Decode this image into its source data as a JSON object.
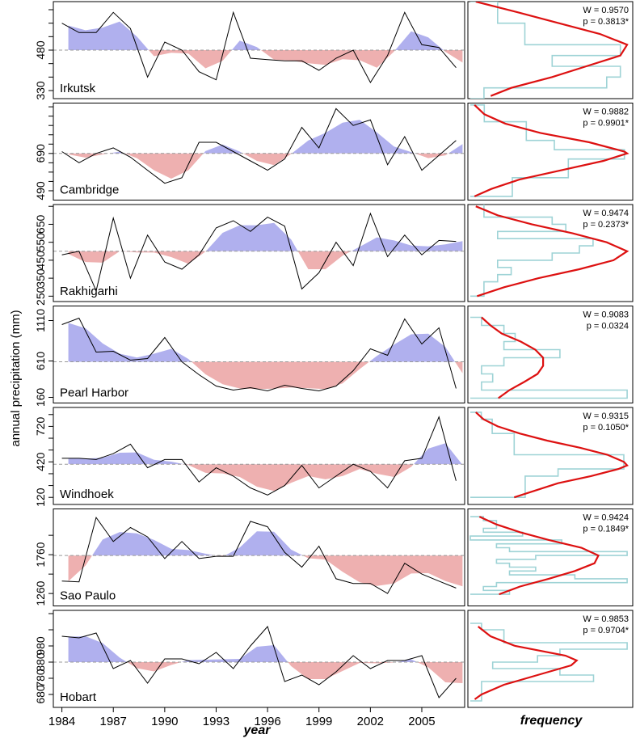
{
  "figure": {
    "ylabel": "annual precipitation (mm)",
    "xlabel": "year",
    "hist_xlabel": "frequency"
  },
  "colors": {
    "above": "#b0b0ee",
    "below": "#eeb0b0",
    "line": "#000000",
    "mean": "#999999",
    "hist": "#9ed3d6",
    "fit": "#dd1111"
  },
  "chart_data": {
    "type": "area",
    "x": [
      1984,
      1985,
      1986,
      1987,
      1988,
      1989,
      1990,
      1991,
      1992,
      1993,
      1994,
      1995,
      1996,
      1997,
      1998,
      1999,
      2000,
      2001,
      2002,
      2003,
      2004,
      2005,
      2006,
      2007
    ],
    "x_ticks": [
      1984,
      1987,
      1990,
      1993,
      1996,
      1999,
      2002,
      2005
    ],
    "x_tick_labels": [
      "1984",
      "1987",
      "1990",
      "1993",
      "1996",
      "1999",
      "2002",
      "2005"
    ],
    "xlim": [
      1983.5,
      2007.5
    ],
    "panels": [
      {
        "name": "Irkutsk",
        "mean": 480,
        "ylim": [
          300,
          660
        ],
        "y_ticks": [
          330,
          380,
          430,
          480,
          530,
          580,
          630
        ],
        "y_tick_labels": [
          "330",
          "",
          "",
          "480",
          "",
          "",
          ""
        ],
        "values": [
          580,
          545,
          545,
          620,
          560,
          380,
          510,
          480,
          400,
          370,
          620,
          450,
          445,
          440,
          440,
          405,
          450,
          480,
          360,
          460,
          620,
          500,
          490,
          415
        ],
        "hist": {
          "bins": [
            [
              620,
              660,
              2
            ],
            [
              580,
              620,
              2
            ],
            [
              540,
              580,
              4
            ],
            [
              500,
              540,
              4
            ],
            [
              460,
              500,
              11
            ],
            [
              420,
              460,
              6
            ],
            [
              380,
              420,
              11
            ],
            [
              340,
              380,
              10
            ],
            [
              300,
              340,
              1
            ]
          ]
        },
        "fit": {
          "y": [
            660,
            620,
            580,
            540,
            500,
            460,
            420,
            380,
            340,
            310
          ],
          "freq": [
            0.4,
            3.5,
            6.5,
            9.5,
            11.5,
            11.0,
            8.5,
            6.0,
            3.0,
            1.5
          ]
        },
        "W_text": "W = 0.9570",
        "p_text": "p = 0.3813*"
      },
      {
        "name": "Cambridge",
        "mean": 690,
        "ylim": [
          440,
          960
        ],
        "y_ticks": [
          490,
          540,
          590,
          640,
          690,
          740,
          790,
          840,
          890,
          940
        ],
        "y_tick_labels": [
          "490",
          "",
          "",
          "",
          "690",
          "",
          "",
          "",
          "",
          ""
        ],
        "values": [
          700,
          640,
          690,
          720,
          670,
          600,
          530,
          560,
          750,
          750,
          700,
          650,
          600,
          660,
          830,
          720,
          930,
          840,
          870,
          630,
          780,
          600,
          680,
          760
        ],
        "hist": {
          "bins": [
            [
              910,
              950,
              1
            ],
            [
              860,
              910,
              1
            ],
            [
              810,
              860,
              4
            ],
            [
              760,
              810,
              4
            ],
            [
              710,
              760,
              6
            ],
            [
              660,
              710,
              11
            ],
            [
              610,
              660,
              7
            ],
            [
              560,
              610,
              7
            ],
            [
              510,
              560,
              3
            ],
            [
              460,
              510,
              3
            ]
          ]
        },
        "fit": {
          "y": [
            950,
            900,
            850,
            800,
            750,
            700,
            690,
            650,
            600,
            550,
            500,
            460
          ],
          "freq": [
            0.3,
            1.0,
            2.5,
            5.0,
            8.5,
            11.0,
            11.2,
            9.5,
            6.5,
            3.5,
            1.5,
            0.3
          ]
        },
        "W_text": "W = 0.9882",
        "p_text": "p = 0.9901*"
      },
      {
        "name": "Rakhigarhi",
        "mean": 500,
        "ylim": [
          220,
          760
        ],
        "y_ticks": [
          250,
          350,
          450,
          550,
          650,
          750
        ],
        "y_tick_labels": [
          "250",
          "350",
          "450",
          "550",
          "650",
          ""
        ],
        "values": [
          480,
          500,
          280,
          685,
          350,
          590,
          440,
          400,
          480,
          630,
          670,
          610,
          690,
          640,
          290,
          380,
          550,
          420,
          710,
          470,
          590,
          480,
          560,
          555
        ],
        "hist": {
          "bins": [
            [
              730,
              770,
              1
            ],
            [
              690,
              730,
              1
            ],
            [
              650,
              690,
              6
            ],
            [
              610,
              650,
              7
            ],
            [
              570,
              610,
              2
            ],
            [
              530,
              570,
              9
            ],
            [
              490,
              530,
              8
            ],
            [
              450,
              490,
              6
            ],
            [
              410,
              450,
              2
            ],
            [
              370,
              410,
              3
            ],
            [
              330,
              370,
              2
            ],
            [
              290,
              330,
              1
            ],
            [
              250,
              290,
              1
            ]
          ]
        },
        "fit": {
          "y": [
            750,
            700,
            650,
            600,
            550,
            500,
            450,
            400,
            350,
            300,
            250
          ],
          "freq": [
            0.4,
            2.0,
            4.5,
            7.5,
            10.0,
            11.5,
            10.5,
            8.0,
            5.0,
            2.5,
            0.5
          ]
        },
        "W_text": "W = 0.9474",
        "p_text": "p = 0.2373*"
      },
      {
        "name": "Pearl Harbor",
        "mean": 600,
        "ylim": [
          90,
          1290
        ],
        "y_ticks": [
          160,
          610,
          1110
        ],
        "y_tick_labels": [
          "160",
          "610",
          "1110"
        ],
        "values": [
          1060,
          1140,
          720,
          730,
          620,
          640,
          900,
          600,
          440,
          300,
          250,
          280,
          240,
          310,
          270,
          240,
          300,
          490,
          760,
          680,
          1130,
          820,
          1020,
          270
        ],
        "hist": {
          "bins": [
            [
              1050,
              1150,
              1
            ],
            [
              950,
              1050,
              3
            ],
            [
              850,
              950,
              4
            ],
            [
              750,
              850,
              3
            ],
            [
              650,
              750,
              8
            ],
            [
              550,
              650,
              3
            ],
            [
              450,
              550,
              1
            ],
            [
              350,
              450,
              2
            ],
            [
              250,
              350,
              1
            ],
            [
              150,
              250,
              14
            ]
          ]
        },
        "fit": {
          "y": [
            1150,
            1050,
            950,
            850,
            750,
            650,
            550,
            450,
            350,
            250,
            150
          ],
          "freq": [
            1.0,
            1.8,
            2.8,
            4.5,
            5.8,
            6.5,
            6.5,
            6.0,
            4.8,
            3.5,
            2.5
          ]
        },
        "W_text": "W = 0.9083",
        "p_text": "p = 0.0324"
      },
      {
        "name": "Windhoek",
        "mean": 400,
        "ylim": [
          60,
          880
        ],
        "y_ticks": [
          120,
          220,
          320,
          420,
          520,
          620,
          720,
          820
        ],
        "y_tick_labels": [
          "120",
          "",
          "",
          "420",
          "",
          "",
          "720",
          ""
        ],
        "values": [
          450,
          450,
          440,
          490,
          570,
          370,
          440,
          440,
          250,
          370,
          300,
          200,
          140,
          220,
          390,
          200,
          300,
          400,
          340,
          200,
          430,
          450,
          800,
          260
        ],
        "hist": {
          "bins": [
            [
              780,
              840,
              1
            ],
            [
              720,
              780,
              2
            ],
            [
              660,
              720,
              2
            ],
            [
              600,
              660,
              4
            ],
            [
              540,
              600,
              4
            ],
            [
              480,
              540,
              4
            ],
            [
              420,
              480,
              14
            ],
            [
              360,
              420,
              14
            ],
            [
              300,
              360,
              8
            ],
            [
              240,
              300,
              5
            ],
            [
              180,
              240,
              5
            ],
            [
              120,
              180,
              5
            ]
          ]
        },
        "fit": {
          "y": [
            840,
            780,
            720,
            660,
            600,
            540,
            480,
            420,
            390,
            360,
            300,
            240,
            180,
            120
          ],
          "freq": [
            0.5,
            1.2,
            2.5,
            4.5,
            7.0,
            10.0,
            12.5,
            14.0,
            14.3,
            13.5,
            11.0,
            8.0,
            6.0,
            4.0
          ]
        },
        "W_text": "W = 0.9315",
        "p_text": "p = 0.1050*"
      },
      {
        "name": "Sao Paulo",
        "mean": 1750,
        "ylim": [
          1100,
          2350
        ],
        "y_ticks": [
          1260,
          1510,
          1760,
          2010
        ],
        "y_tick_labels": [
          "1260",
          "",
          "1760",
          ""
        ],
        "values": [
          1420,
          1410,
          2240,
          1930,
          2110,
          1990,
          1710,
          1930,
          1710,
          1740,
          1740,
          2190,
          2120,
          1790,
          1600,
          1870,
          1450,
          1390,
          1390,
          1260,
          1650,
          1510,
          1420,
          1330
        ],
        "hist": {
          "bins": [
            [
              2200,
              2250,
              1
            ],
            [
              2150,
              2200,
              2
            ],
            [
              2100,
              2150,
              2
            ],
            [
              2050,
              2100,
              1
            ],
            [
              2000,
              2050,
              4
            ],
            [
              1950,
              2000,
              0
            ],
            [
              1900,
              1950,
              7
            ],
            [
              1850,
              1900,
              2
            ],
            [
              1800,
              1850,
              3
            ],
            [
              1750,
              1800,
              12
            ],
            [
              1700,
              1750,
              5
            ],
            [
              1650,
              1700,
              2
            ],
            [
              1600,
              1650,
              3
            ],
            [
              1550,
              1600,
              5
            ],
            [
              1500,
              1550,
              3
            ],
            [
              1450,
              1500,
              8
            ],
            [
              1400,
              1450,
              12
            ],
            [
              1350,
              1400,
              2
            ],
            [
              1300,
              1350,
              1
            ],
            [
              1250,
              1300,
              3
            ]
          ]
        },
        "fit": {
          "y": [
            2250,
            2150,
            2050,
            1950,
            1850,
            1750,
            1650,
            1550,
            1450,
            1350,
            1250
          ],
          "freq": [
            0.7,
            2.0,
            3.8,
            6.0,
            8.5,
            9.8,
            9.5,
            8.0,
            6.0,
            3.8,
            2.2
          ]
        },
        "W_text": "W = 0.9424",
        "p_text": "p = 0.1849*"
      },
      {
        "name": "Hobart",
        "mean": 880,
        "ylim": [
          600,
          1200
        ],
        "y_ticks": [
          680,
          780,
          880,
          980,
          1080,
          1180
        ],
        "y_tick_labels": [
          "680",
          "780",
          "880",
          "980",
          "",
          ""
        ],
        "values": [
          1040,
          1030,
          1060,
          840,
          890,
          750,
          900,
          900,
          870,
          940,
          840,
          980,
          1100,
          760,
          800,
          740,
          820,
          920,
          840,
          890,
          890,
          920,
          660,
          780
        ],
        "hist": {
          "bins": [
            [
              1080,
              1120,
              1
            ],
            [
              1040,
              1080,
              3
            ],
            [
              1000,
              1040,
              3
            ],
            [
              960,
              1000,
              14
            ],
            [
              920,
              960,
              8
            ],
            [
              880,
              920,
              6
            ],
            [
              840,
              880,
              2
            ],
            [
              800,
              840,
              8
            ],
            [
              760,
              800,
              11
            ],
            [
              720,
              760,
              1
            ],
            [
              680,
              720,
              1
            ],
            [
              640,
              680,
              1
            ]
          ]
        },
        "fit": {
          "y": [
            1100,
            1040,
            980,
            920,
            890,
            860,
            800,
            740,
            680,
            650
          ],
          "freq": [
            0.7,
            1.8,
            4.0,
            8.5,
            9.5,
            9.0,
            6.0,
            3.0,
            1.0,
            0.4
          ]
        },
        "W_text": "W = 0.9853",
        "p_text": "p = 0.9704*"
      }
    ]
  }
}
